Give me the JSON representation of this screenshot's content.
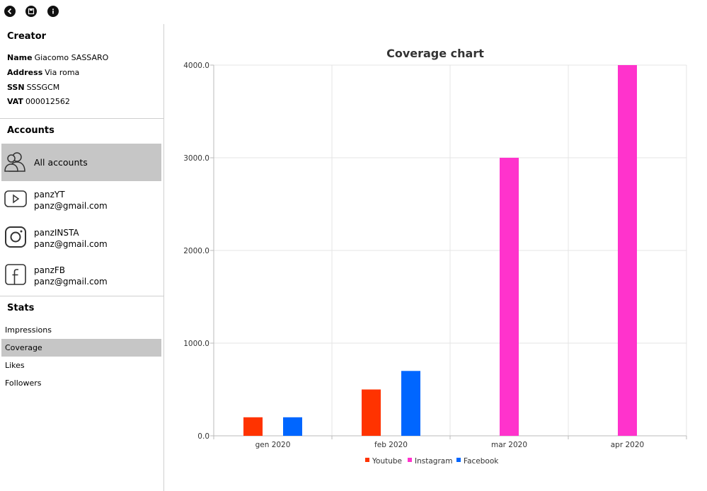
{
  "toolbar": {
    "back_icon": "back-arrow-icon",
    "save_icon": "save-icon",
    "info_icon": "info-icon"
  },
  "creator": {
    "title": "Creator",
    "name_label": "Name",
    "name_value": "Giacomo SASSARO",
    "address_label": "Address",
    "address_value": "Via roma",
    "ssn_label": "SSN",
    "ssn_value": "SSSGCM",
    "vat_label": "VAT",
    "vat_value": "000012562"
  },
  "accounts": {
    "title": "Accounts",
    "all_label": "All accounts",
    "items": [
      {
        "name": "panzYT",
        "email": "panz@gmail.com",
        "icon": "youtube-icon"
      },
      {
        "name": "panzINSTA",
        "email": "panz@gmail.com",
        "icon": "instagram-icon"
      },
      {
        "name": "panzFB",
        "email": "panz@gmail.com",
        "icon": "facebook-icon"
      }
    ]
  },
  "stats": {
    "title": "Stats",
    "items": [
      "Impressions",
      "Coverage",
      "Likes",
      "Followers"
    ],
    "selected": "Coverage"
  },
  "chart_data": {
    "type": "bar",
    "title": "Coverage chart",
    "categories": [
      "gen 2020",
      "feb 2020",
      "mar 2020",
      "apr 2020"
    ],
    "series": [
      {
        "name": "Youtube",
        "color": "#ff3300",
        "values": [
          200,
          500,
          null,
          null
        ]
      },
      {
        "name": "Instagram",
        "color": "#ff33cc",
        "values": [
          null,
          null,
          3000,
          4000
        ]
      },
      {
        "name": "Facebook",
        "color": "#0066ff",
        "values": [
          200,
          700,
          null,
          null
        ]
      }
    ],
    "yticks": [
      "0.0",
      "1000.0",
      "2000.0",
      "3000.0",
      "4000.0"
    ],
    "ylim": [
      0,
      4000
    ],
    "grid": true,
    "legend": "bottom"
  }
}
